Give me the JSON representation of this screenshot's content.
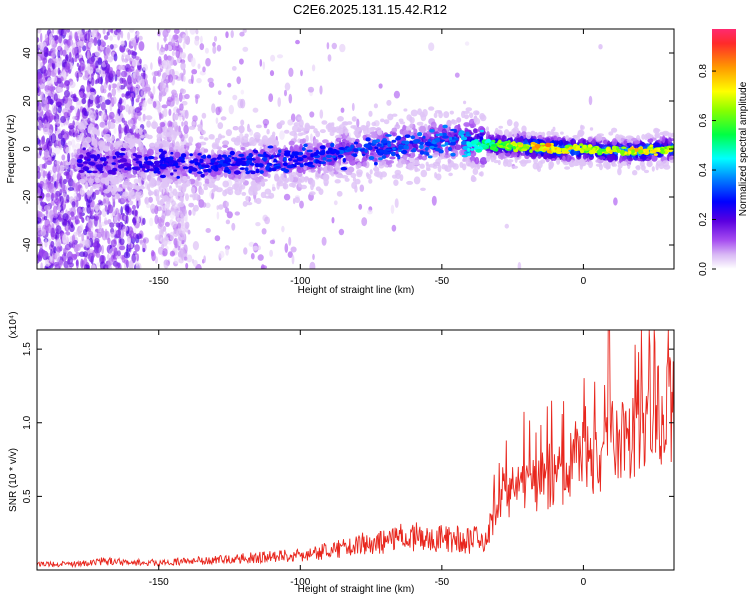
{
  "title": "C2E6.2025.131.15.42.R12",
  "chart_data": [
    {
      "type": "heatmap",
      "xlabel": "Height of straight line (km)",
      "ylabel": "Frequency (Hz)",
      "xlim": [
        -193,
        32
      ],
      "ylim": [
        -50,
        50
      ],
      "xticks": [
        -150,
        -100,
        -50,
        0
      ],
      "yticks": [
        -40,
        -20,
        0,
        20,
        40
      ],
      "ytick_labels": [
        "-40",
        "-20",
        "0",
        "20",
        "40"
      ],
      "colorbar": {
        "label": "Normalized spectral amplitude",
        "range": [
          0.0,
          0.97
        ],
        "ticks": [
          0.0,
          0.2,
          0.4,
          0.6,
          0.8
        ],
        "tick_labels": [
          "0.0",
          "0.2",
          "0.4",
          "0.6",
          "0.8"
        ]
      },
      "ridge": {
        "x": [
          -178,
          -160,
          -140,
          -120,
          -100,
          -80,
          -60,
          -45,
          -35,
          -20,
          -10,
          0,
          10,
          20,
          32
        ],
        "center_hz": [
          -5,
          -6,
          -6,
          -6,
          -4,
          -1,
          2,
          4,
          2,
          1,
          0,
          0,
          -1,
          -1,
          0
        ],
        "peak_amplitude": [
          0.25,
          0.25,
          0.3,
          0.3,
          0.32,
          0.35,
          0.35,
          0.38,
          0.55,
          0.8,
          0.85,
          0.7,
          0.75,
          0.8,
          0.7
        ]
      }
    },
    {
      "type": "line",
      "xlabel": "Height of straight line (km)",
      "ylabel": "SNR (10 * v/v)",
      "y_multiplier": "(x10⁴)",
      "xlim": [
        -193,
        32
      ],
      "ylim": [
        0,
        1.63
      ],
      "xticks": [
        -150,
        -100,
        -50,
        0
      ],
      "yticks": [
        0.5,
        1.0,
        1.5
      ],
      "ytick_labels": [
        "0.5",
        "1.0",
        "1.5"
      ],
      "series": [
        {
          "color": "#e8261d",
          "x": [
            -193,
            -180,
            -170,
            -160,
            -150,
            -140,
            -130,
            -120,
            -110,
            -100,
            -90,
            -80,
            -70,
            -60,
            -50,
            -40,
            -35,
            -30,
            -25,
            -20,
            -15,
            -10,
            -5,
            0,
            5,
            10,
            15,
            20,
            25,
            30,
            32
          ],
          "y": [
            0.04,
            0.04,
            0.06,
            0.05,
            0.05,
            0.06,
            0.07,
            0.08,
            0.09,
            0.1,
            0.13,
            0.17,
            0.2,
            0.23,
            0.22,
            0.2,
            0.22,
            0.55,
            0.6,
            0.7,
            0.72,
            0.75,
            0.85,
            0.9,
            0.9,
            1.05,
            1.05,
            1.15,
            1.25,
            1.32,
            1.33
          ]
        }
      ]
    }
  ]
}
